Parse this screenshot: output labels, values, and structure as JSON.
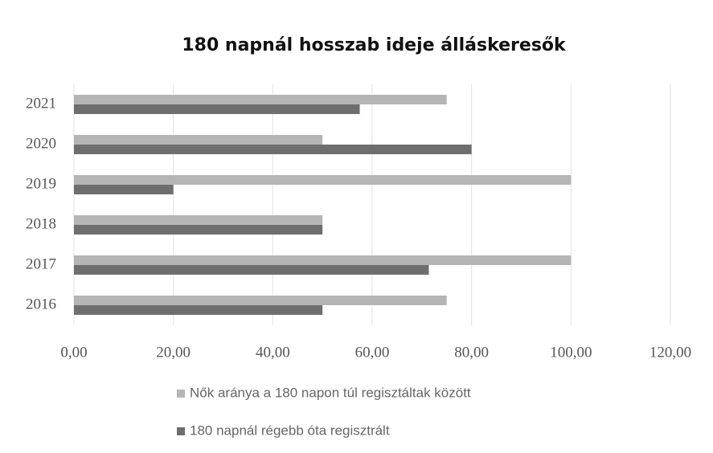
{
  "chart_data": {
    "type": "bar",
    "orientation": "horizontal",
    "title": "180 napnál hosszab ideje álláskeresők",
    "categories": [
      "2016",
      "2017",
      "2018",
      "2019",
      "2020",
      "2021"
    ],
    "series": [
      {
        "name": "Nők aránya a 180 napon túl regisztáltak között",
        "color": "#b5b5b5",
        "values": [
          75,
          100,
          50,
          100,
          50,
          75
        ]
      },
      {
        "name": "180 napnál régebb óta regisztrált",
        "color": "#6e6e6e",
        "values": [
          50,
          71.4,
          50,
          20,
          80,
          57.5
        ]
      }
    ],
    "xlim": [
      0,
      120
    ],
    "xticks": [
      {
        "value": 0,
        "label": "0,00"
      },
      {
        "value": 20,
        "label": "20,00"
      },
      {
        "value": 40,
        "label": "40,00"
      },
      {
        "value": 60,
        "label": "60,00"
      },
      {
        "value": 80,
        "label": "80,00"
      },
      {
        "value": 100,
        "label": "100,00"
      },
      {
        "value": 120,
        "label": "120,00"
      }
    ],
    "grid": true,
    "legend": "bottom"
  }
}
